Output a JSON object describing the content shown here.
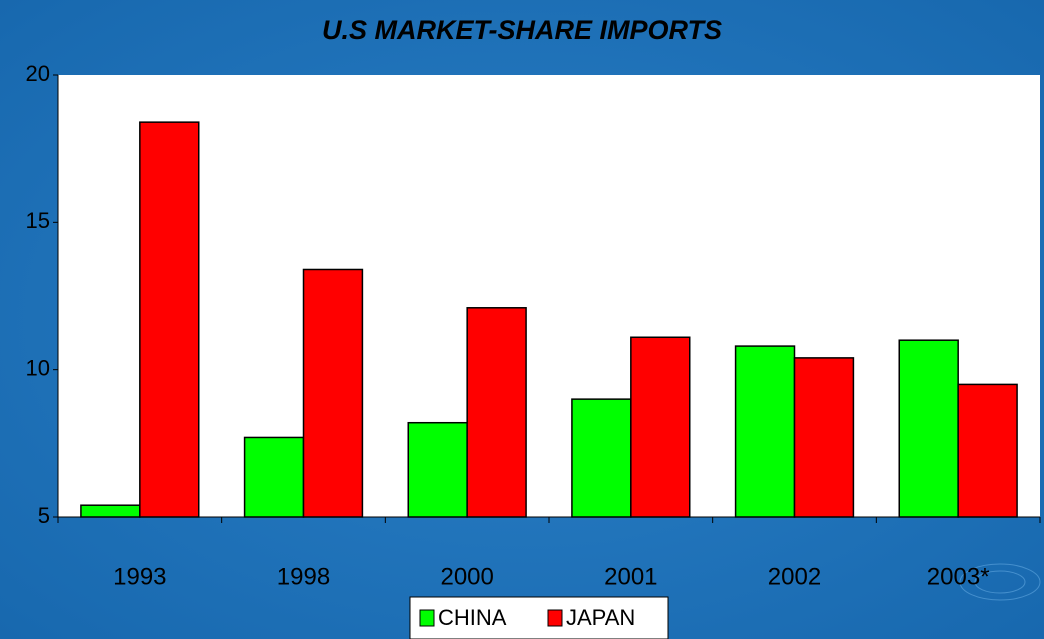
{
  "chart_data": {
    "type": "bar",
    "title": "U.S MARKET-SHARE IMPORTS",
    "categories": [
      "1993",
      "1998",
      "2000",
      "2001",
      "2002",
      "2003*"
    ],
    "series": [
      {
        "name": "CHINA",
        "color": "#00ff00",
        "values": [
          5.4,
          7.7,
          8.2,
          9.0,
          10.8,
          11.0
        ]
      },
      {
        "name": "JAPAN",
        "color": "#ff0000",
        "values": [
          18.4,
          13.4,
          12.1,
          11.1,
          10.4,
          9.5
        ]
      }
    ],
    "ylim": [
      5,
      20
    ],
    "yticks": [
      5,
      10,
      15,
      20
    ],
    "legend": "bottom"
  }
}
